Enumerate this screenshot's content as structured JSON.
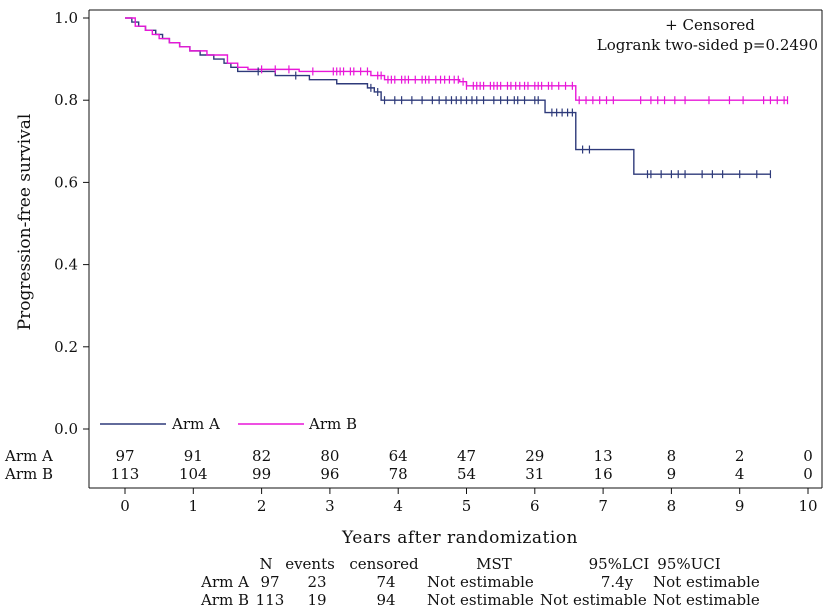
{
  "chart_data": {
    "type": "line",
    "xlabel": "Years after randomization",
    "ylabel": "Progression-free survival",
    "xlim": [
      0,
      10
    ],
    "ylim": [
      0,
      1
    ],
    "x_ticks": [
      "0",
      "1",
      "2",
      "3",
      "4",
      "5",
      "6",
      "7",
      "8",
      "9",
      "10"
    ],
    "y_ticks": [
      "0.0",
      "0.2",
      "0.4",
      "0.6",
      "0.8",
      "1.0"
    ],
    "annotation_censored": "+ Censored",
    "annotation_logrank": "Logrank two-sided p=0.2490",
    "legend_position": "bottom-left",
    "series": [
      {
        "name": "Arm A",
        "color": "#2e3a7a",
        "steps": [
          [
            0,
            1.0
          ],
          [
            0.1,
            0.99
          ],
          [
            0.2,
            0.98
          ],
          [
            0.3,
            0.97
          ],
          [
            0.45,
            0.96
          ],
          [
            0.55,
            0.95
          ],
          [
            0.65,
            0.94
          ],
          [
            0.8,
            0.93
          ],
          [
            0.95,
            0.92
          ],
          [
            1.1,
            0.91
          ],
          [
            1.3,
            0.9
          ],
          [
            1.45,
            0.89
          ],
          [
            1.55,
            0.88
          ],
          [
            1.65,
            0.87
          ],
          [
            2.2,
            0.86
          ],
          [
            2.7,
            0.85
          ],
          [
            3.1,
            0.84
          ],
          [
            3.55,
            0.83
          ],
          [
            3.65,
            0.82
          ],
          [
            3.75,
            0.8
          ],
          [
            6.15,
            0.77
          ],
          [
            6.6,
            0.68
          ],
          [
            7.45,
            0.62
          ],
          [
            9.45,
            0.62
          ]
        ],
        "censor_times": [
          1.95,
          2.5,
          3.6,
          3.7,
          3.8,
          3.95,
          4.05,
          4.2,
          4.35,
          4.5,
          4.6,
          4.7,
          4.78,
          4.85,
          4.92,
          5.0,
          5.08,
          5.15,
          5.25,
          5.4,
          5.5,
          5.6,
          5.7,
          5.75,
          5.85,
          6.0,
          6.05,
          6.25,
          6.32,
          6.4,
          6.48,
          6.55,
          6.7,
          6.8,
          7.65,
          7.7,
          7.85,
          8.0,
          8.1,
          8.2,
          8.45,
          8.6,
          8.75,
          9.0,
          9.25,
          9.45
        ]
      },
      {
        "name": "Arm B",
        "color": "#e817d8",
        "steps": [
          [
            0,
            1.0
          ],
          [
            0.15,
            0.98
          ],
          [
            0.3,
            0.97
          ],
          [
            0.4,
            0.96
          ],
          [
            0.5,
            0.95
          ],
          [
            0.65,
            0.94
          ],
          [
            0.8,
            0.93
          ],
          [
            0.95,
            0.92
          ],
          [
            1.2,
            0.91
          ],
          [
            1.5,
            0.89
          ],
          [
            1.65,
            0.88
          ],
          [
            1.8,
            0.875
          ],
          [
            2.55,
            0.87
          ],
          [
            3.6,
            0.86
          ],
          [
            3.8,
            0.85
          ],
          [
            4.4,
            0.85
          ],
          [
            4.9,
            0.845
          ],
          [
            5.0,
            0.835
          ],
          [
            6.6,
            0.8
          ],
          [
            9.7,
            0.8
          ]
        ],
        "censor_times": [
          2.0,
          2.2,
          2.4,
          2.75,
          3.05,
          3.1,
          3.15,
          3.2,
          3.3,
          3.35,
          3.45,
          3.55,
          3.7,
          3.75,
          3.85,
          3.9,
          3.95,
          4.05,
          4.1,
          4.15,
          4.25,
          4.35,
          4.4,
          4.45,
          4.55,
          4.62,
          4.68,
          4.75,
          4.82,
          4.88,
          4.95,
          5.0,
          5.1,
          5.15,
          5.2,
          5.25,
          5.35,
          5.4,
          5.45,
          5.5,
          5.6,
          5.65,
          5.72,
          5.78,
          5.85,
          5.9,
          6.0,
          6.05,
          6.1,
          6.2,
          6.25,
          6.35,
          6.45,
          6.55,
          6.65,
          6.75,
          6.85,
          6.95,
          7.05,
          7.15,
          7.55,
          7.7,
          7.8,
          7.9,
          8.05,
          8.2,
          8.55,
          8.85,
          9.05,
          9.35,
          9.45,
          9.55,
          9.65,
          9.7
        ]
      }
    ],
    "at_risk": {
      "labels": [
        "Arm A",
        "Arm B"
      ],
      "rows": [
        [
          "97",
          "91",
          "82",
          "80",
          "64",
          "47",
          "29",
          "13",
          "8",
          "2",
          "0"
        ],
        [
          "113",
          "104",
          "99",
          "96",
          "78",
          "54",
          "31",
          "16",
          "9",
          "4",
          "0"
        ]
      ]
    }
  },
  "stats_table": {
    "headers": [
      "N",
      "events",
      "censored",
      "MST",
      "95%LCI",
      "95%UCI"
    ],
    "rows": [
      {
        "arm": "Arm A",
        "n": "97",
        "events": "23",
        "censored": "74",
        "mst": "Not estimable",
        "lci": "7.4y",
        "uci": "Not estimable"
      },
      {
        "arm": "Arm B",
        "n": "113",
        "events": "19",
        "censored": "94",
        "mst": "Not estimable",
        "lci": "Not estimable",
        "uci": "Not estimable"
      }
    ]
  }
}
